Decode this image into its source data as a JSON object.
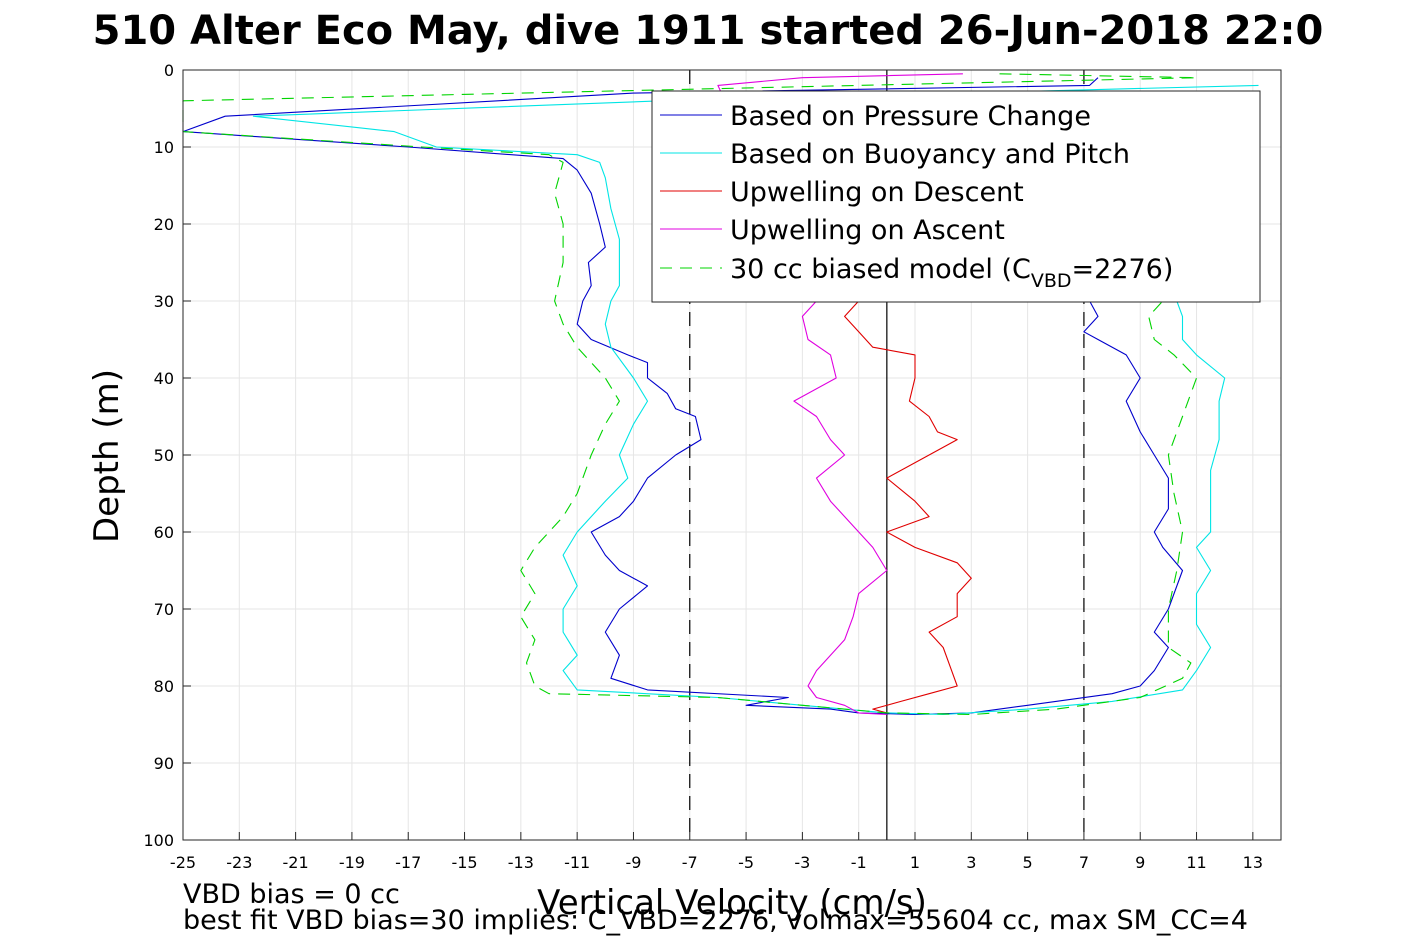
{
  "chart_data": {
    "type": "line",
    "title": "510 Alter Eco May, dive 1911 started 26-Jun-2018 22:0",
    "xlabel": "Vertical Velocity (cm/s)",
    "ylabel": "Depth (m)",
    "xlim": [
      -25,
      14
    ],
    "ylim": [
      0,
      100
    ],
    "y_reversed": true,
    "xticks": [
      "-25",
      "-23",
      "-21",
      "-19",
      "-17",
      "-15",
      "-13",
      "-11",
      "-9",
      "-7",
      "-5",
      "-3",
      "-1",
      "1",
      "3",
      "5",
      "7",
      "9",
      "11",
      "13"
    ],
    "yticks": [
      "0",
      "10",
      "20",
      "30",
      "40",
      "50",
      "60",
      "70",
      "80",
      "90",
      "100"
    ],
    "grid": true,
    "legend_position": "top-right",
    "reference_lines": {
      "solid_x": [
        0
      ],
      "dashed_x": [
        -7,
        7
      ]
    },
    "legend": {
      "entries": [
        {
          "label": "Based on Pressure Change",
          "color": "#0000cc",
          "style": "solid"
        },
        {
          "label": "Based on Buoyancy and Pitch",
          "color": "#00e5e5",
          "style": "solid"
        },
        {
          "label": "Upwelling on Descent",
          "color": "#e00000",
          "style": "solid"
        },
        {
          "label": "Upwelling on Ascent",
          "color": "#e000e0",
          "style": "solid"
        }
      ],
      "model_prefix": "30 cc biased model (C",
      "model_sub": "VBD",
      "model_suffix": "=2276)",
      "model_color": "#00d400"
    },
    "series": [
      {
        "color": "#0000cc",
        "style": "solid",
        "points": [
          [
            7.5,
            1
          ],
          [
            7.2,
            2
          ],
          [
            -9,
            3
          ],
          [
            -23.5,
            6
          ],
          [
            -25,
            8
          ],
          [
            -17,
            10
          ],
          [
            -11.5,
            11.5
          ],
          [
            -11,
            13
          ],
          [
            -10.5,
            16
          ],
          [
            -10.2,
            20
          ],
          [
            -10,
            23
          ],
          [
            -10.6,
            25
          ],
          [
            -10.5,
            28
          ],
          [
            -10.8,
            30
          ],
          [
            -11,
            33
          ],
          [
            -10.5,
            35
          ],
          [
            -9.2,
            37
          ],
          [
            -8.5,
            38
          ],
          [
            -8.5,
            40
          ],
          [
            -7.8,
            42
          ],
          [
            -7.5,
            44
          ],
          [
            -6.8,
            45
          ],
          [
            -6.6,
            48
          ],
          [
            -7.5,
            50
          ],
          [
            -8.5,
            53
          ],
          [
            -9,
            56
          ],
          [
            -9.5,
            58
          ],
          [
            -10.5,
            60
          ],
          [
            -10,
            63
          ],
          [
            -9.5,
            65
          ],
          [
            -8.5,
            67
          ],
          [
            -9.5,
            70
          ],
          [
            -10,
            73
          ],
          [
            -9.5,
            76
          ],
          [
            -9.8,
            79
          ],
          [
            -8.5,
            80.5
          ],
          [
            -3.5,
            81.5
          ],
          [
            -5,
            82.5
          ],
          [
            -2,
            83
          ],
          [
            -1,
            83.5
          ],
          [
            1,
            83.7
          ],
          [
            3,
            83.5
          ],
          [
            5,
            82.5
          ],
          [
            8,
            81
          ],
          [
            9,
            80
          ],
          [
            9.5,
            78
          ],
          [
            10,
            75
          ],
          [
            9.5,
            73
          ],
          [
            10,
            70
          ],
          [
            10.5,
            65
          ],
          [
            9.8,
            62
          ],
          [
            9.5,
            60
          ],
          [
            10,
            57
          ],
          [
            10,
            53
          ],
          [
            9.5,
            50
          ],
          [
            9,
            47
          ],
          [
            8.5,
            43
          ],
          [
            9,
            40
          ],
          [
            8.5,
            37
          ],
          [
            7.5,
            35
          ],
          [
            7,
            34
          ],
          [
            7.5,
            32
          ],
          [
            7.2,
            30
          ]
        ]
      },
      {
        "color": "#00e5e5",
        "style": "solid",
        "points": [
          [
            13.2,
            2
          ],
          [
            -8,
            4
          ],
          [
            -22.5,
            6
          ],
          [
            -17.5,
            8
          ],
          [
            -16,
            10
          ],
          [
            -11,
            11
          ],
          [
            -10.2,
            12
          ],
          [
            -10,
            14
          ],
          [
            -9.8,
            18
          ],
          [
            -9.5,
            22
          ],
          [
            -9.5,
            25
          ],
          [
            -9.5,
            28
          ],
          [
            -9.8,
            30
          ],
          [
            -10,
            33
          ],
          [
            -9.8,
            36
          ],
          [
            -9,
            40
          ],
          [
            -8.5,
            43
          ],
          [
            -9,
            46
          ],
          [
            -9.5,
            50
          ],
          [
            -9.2,
            53
          ],
          [
            -10,
            56
          ],
          [
            -11,
            60
          ],
          [
            -11.5,
            63
          ],
          [
            -11,
            67
          ],
          [
            -11.5,
            70
          ],
          [
            -11.5,
            73
          ],
          [
            -11,
            76
          ],
          [
            -11.5,
            78
          ],
          [
            -11,
            80.5
          ],
          [
            -6,
            81.5
          ],
          [
            -3,
            82.5
          ],
          [
            0,
            83.5
          ],
          [
            2,
            83.7
          ],
          [
            5,
            83
          ],
          [
            8,
            82
          ],
          [
            10.5,
            80.5
          ],
          [
            11,
            78
          ],
          [
            11.5,
            75
          ],
          [
            11,
            72
          ],
          [
            11,
            68
          ],
          [
            11.5,
            65
          ],
          [
            11,
            62
          ],
          [
            11.5,
            60
          ],
          [
            11.5,
            56
          ],
          [
            11.5,
            52
          ],
          [
            11.8,
            48
          ],
          [
            11.8,
            43
          ],
          [
            12,
            40
          ],
          [
            11,
            37
          ],
          [
            10.5,
            35
          ],
          [
            10.5,
            32
          ],
          [
            10.3,
            30
          ]
        ]
      },
      {
        "color": "#e00000",
        "style": "solid",
        "points": [
          [
            -1,
            30
          ],
          [
            -1.5,
            32
          ],
          [
            -1,
            34
          ],
          [
            -0.5,
            36
          ],
          [
            1,
            37
          ],
          [
            1,
            40
          ],
          [
            0.8,
            43
          ],
          [
            1.5,
            45
          ],
          [
            1.8,
            47
          ],
          [
            2.5,
            48
          ],
          [
            1.5,
            50
          ],
          [
            0,
            53
          ],
          [
            1,
            56
          ],
          [
            1.5,
            58
          ],
          [
            0,
            60
          ],
          [
            1,
            62
          ],
          [
            2.5,
            64
          ],
          [
            3,
            66
          ],
          [
            2.5,
            68
          ],
          [
            2.5,
            71
          ],
          [
            1.5,
            73
          ],
          [
            2,
            75
          ],
          [
            2.3,
            78
          ],
          [
            2.5,
            80
          ],
          [
            1.5,
            81
          ],
          [
            0.5,
            82
          ],
          [
            -0.5,
            83
          ],
          [
            0,
            83.5
          ]
        ]
      },
      {
        "color": "#e000e0",
        "style": "solid",
        "points": [
          [
            2.7,
            0.5
          ],
          [
            -3,
            1
          ],
          [
            -6,
            2
          ],
          [
            -2.5,
            30
          ],
          [
            -3,
            32
          ],
          [
            -2.8,
            35
          ],
          [
            -2,
            37
          ],
          [
            -1.8,
            40
          ],
          [
            -3.3,
            43
          ],
          [
            -2.5,
            45
          ],
          [
            -2,
            48
          ],
          [
            -1.5,
            50
          ],
          [
            -2.5,
            53
          ],
          [
            -2,
            56
          ],
          [
            -1,
            60
          ],
          [
            -0.5,
            62
          ],
          [
            0,
            65
          ],
          [
            -1,
            68
          ],
          [
            -1.2,
            71
          ],
          [
            -1.5,
            74
          ],
          [
            -2,
            76
          ],
          [
            -2.5,
            78
          ],
          [
            -2.8,
            80
          ],
          [
            -2.5,
            81.5
          ],
          [
            -1.5,
            82.5
          ],
          [
            -1,
            83.5
          ],
          [
            0,
            83.7
          ]
        ]
      },
      {
        "color": "#00d400",
        "style": "dashed",
        "points": [
          [
            4,
            0.5
          ],
          [
            11,
            1
          ],
          [
            -25,
            4
          ],
          [
            -25,
            8
          ],
          [
            -16.5,
            10
          ],
          [
            -12,
            11
          ],
          [
            -11.5,
            12
          ],
          [
            -11.8,
            16
          ],
          [
            -11.5,
            20
          ],
          [
            -11.5,
            25
          ],
          [
            -11.8,
            30
          ],
          [
            -11.5,
            33
          ],
          [
            -11,
            36
          ],
          [
            -10,
            40
          ],
          [
            -9.5,
            43
          ],
          [
            -10,
            46
          ],
          [
            -10.5,
            50
          ],
          [
            -11,
            55
          ],
          [
            -11.5,
            58
          ],
          [
            -12.5,
            62
          ],
          [
            -13,
            65
          ],
          [
            -12.5,
            68
          ],
          [
            -13,
            71
          ],
          [
            -12.5,
            74
          ],
          [
            -12.8,
            77
          ],
          [
            -12.5,
            80
          ],
          [
            -12,
            81
          ],
          [
            -6,
            81.5
          ],
          [
            -3,
            82.5
          ],
          [
            0,
            83.5
          ],
          [
            3,
            83.7
          ],
          [
            6,
            83
          ],
          [
            9,
            81.5
          ],
          [
            10.5,
            79
          ],
          [
            10.8,
            77
          ],
          [
            10,
            75
          ],
          [
            10,
            70
          ],
          [
            10.3,
            65
          ],
          [
            10.5,
            60
          ],
          [
            10.2,
            55
          ],
          [
            10,
            50
          ],
          [
            10.5,
            45
          ],
          [
            11,
            40
          ],
          [
            10.2,
            37
          ],
          [
            9.5,
            35
          ],
          [
            9.3,
            32
          ],
          [
            9.8,
            30
          ]
        ]
      }
    ]
  },
  "notes": {
    "bias_line": "VBD bias = 0 cc",
    "fit_line": "best fit VBD bias=30 implies: C_VBD=2276, volmax=55604 cc, max SM_CC=4"
  }
}
